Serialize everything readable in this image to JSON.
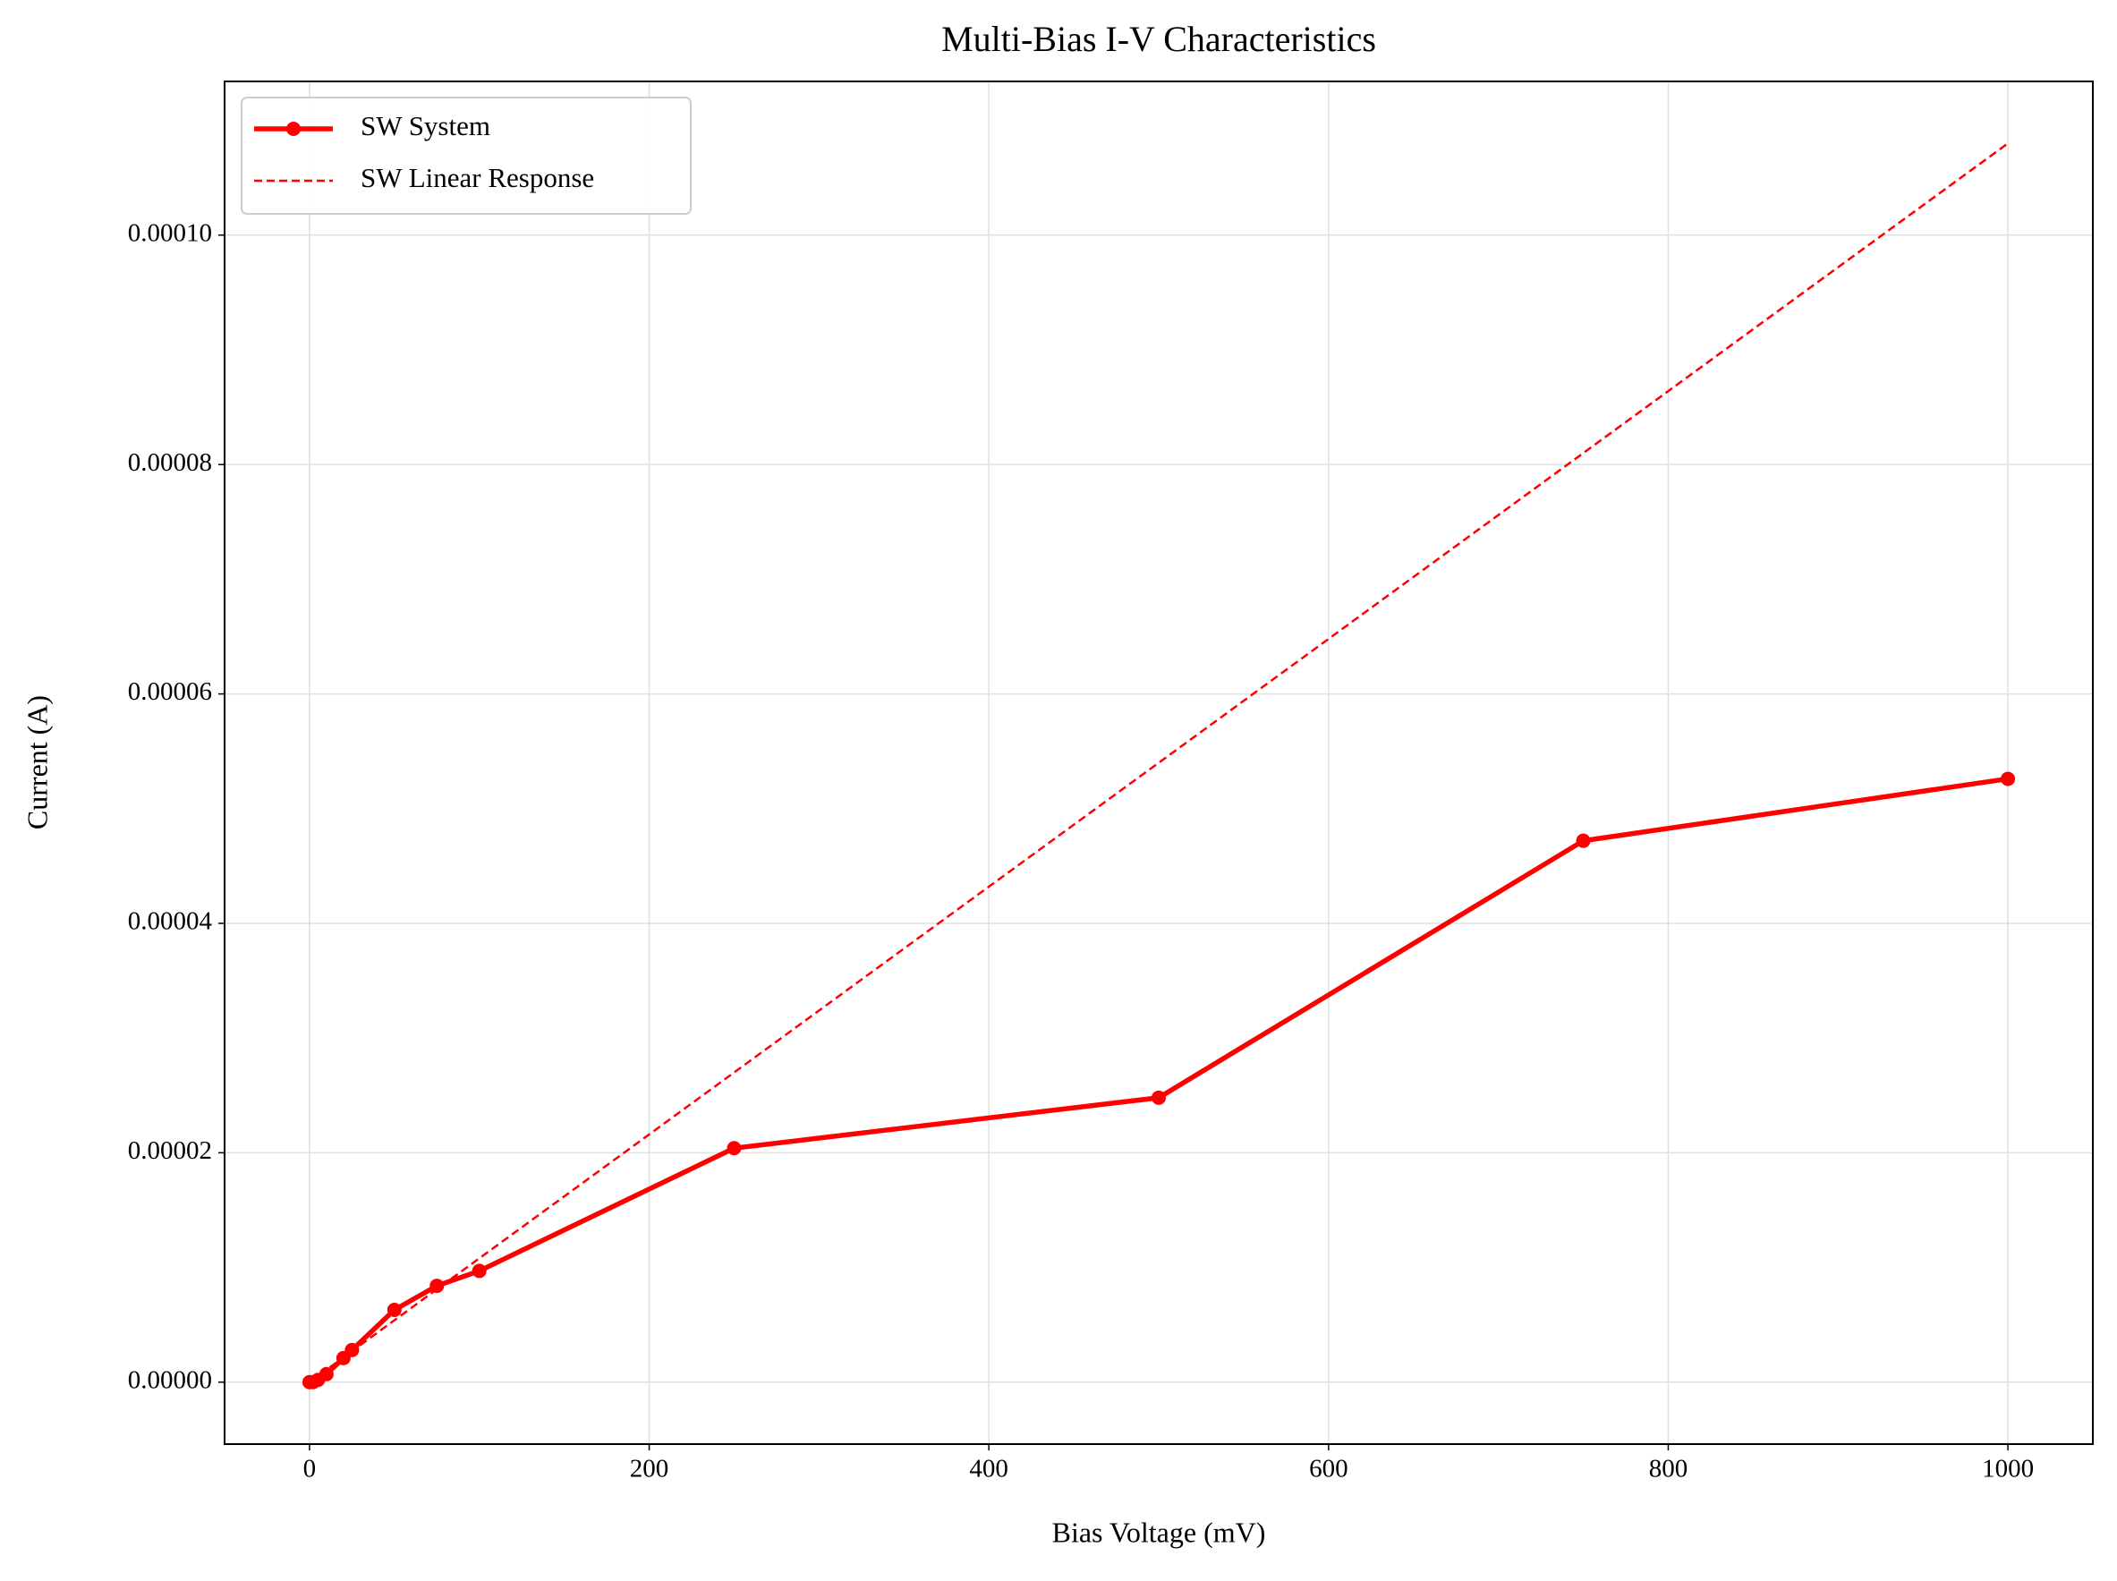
{
  "chart_data": {
    "type": "line",
    "title": "Multi-Bias I-V Characteristics",
    "x_label": "Bias Voltage (mV)",
    "y_label": "Current (A)",
    "grid": true,
    "legend": "upper left",
    "xlim": [
      -50,
      1050
    ],
    "xticks": [
      0,
      200,
      400,
      600,
      800,
      1000
    ],
    "ylim": [
      -5.4e-06,
      0.0001134
    ],
    "yticks": [
      {
        "value": 0,
        "label": "0.00000"
      },
      {
        "value": 2e-05,
        "label": "0.00002"
      },
      {
        "value": 4e-05,
        "label": "0.00004"
      },
      {
        "value": 6e-05,
        "label": "0.00006"
      },
      {
        "value": 8e-05,
        "label": "0.00008"
      },
      {
        "value": 0.0001,
        "label": "0.00010"
      }
    ],
    "series": [
      {
        "name": "SW System",
        "color": "#ff0000",
        "style": "solid",
        "marker": true,
        "x": [
          0,
          2,
          5,
          10,
          20,
          25,
          50,
          75,
          100,
          250,
          500,
          750,
          1000
        ],
        "values": [
          0,
          0,
          2e-07,
          7e-07,
          2.1e-06,
          2.8e-06,
          6.3e-06,
          8.4e-06,
          9.7e-06,
          2.04e-05,
          2.48e-05,
          4.72e-05,
          5.26e-05
        ]
      },
      {
        "name": "SW Linear Response",
        "color": "#ff0000",
        "style": "dashed",
        "marker": false,
        "x": [
          0,
          1000
        ],
        "values": [
          0,
          0.000108
        ]
      }
    ]
  }
}
